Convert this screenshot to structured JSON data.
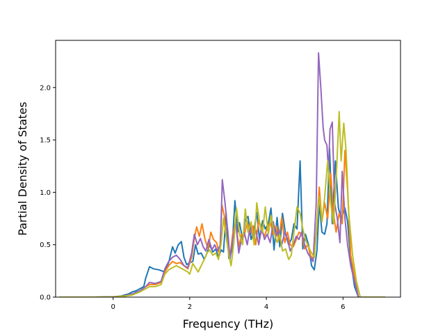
{
  "chart_data": {
    "type": "line",
    "xlabel": "Frequency (THz)",
    "ylabel": "Partial Density of States",
    "xlim": [
      -1.5,
      7.5
    ],
    "ylim": [
      0.0,
      2.45
    ],
    "grid": false,
    "legend": "none",
    "xticks": [
      {
        "v": 0,
        "label": "0"
      },
      {
        "v": 2,
        "label": "2"
      },
      {
        "v": 4,
        "label": "4"
      },
      {
        "v": 6,
        "label": "6"
      }
    ],
    "yticks": [
      {
        "v": 0.0,
        "label": "0.0"
      },
      {
        "v": 0.5,
        "label": "0.5"
      },
      {
        "v": 1.0,
        "label": "1.0"
      },
      {
        "v": 1.5,
        "label": "1.5"
      },
      {
        "v": 2.0,
        "label": "2.0"
      }
    ],
    "series": [
      {
        "color": "#1f77b4",
        "points": [
          [
            -1.4,
            0
          ],
          [
            -0.5,
            0
          ],
          [
            0,
            0.003
          ],
          [
            0.2,
            0.01
          ],
          [
            0.4,
            0.03
          ],
          [
            0.5,
            0.05
          ],
          [
            0.6,
            0.06
          ],
          [
            0.8,
            0.1
          ],
          [
            0.85,
            0.18
          ],
          [
            0.95,
            0.29
          ],
          [
            1.05,
            0.27
          ],
          [
            1.2,
            0.26
          ],
          [
            1.35,
            0.24
          ],
          [
            1.45,
            0.33
          ],
          [
            1.55,
            0.48
          ],
          [
            1.62,
            0.42
          ],
          [
            1.7,
            0.5
          ],
          [
            1.78,
            0.53
          ],
          [
            1.85,
            0.38
          ],
          [
            1.92,
            0.31
          ],
          [
            2.0,
            0.33
          ],
          [
            2.08,
            0.34
          ],
          [
            2.15,
            0.5
          ],
          [
            2.22,
            0.41
          ],
          [
            2.3,
            0.42
          ],
          [
            2.38,
            0.36
          ],
          [
            2.45,
            0.42
          ],
          [
            2.52,
            0.5
          ],
          [
            2.6,
            0.43
          ],
          [
            2.68,
            0.46
          ],
          [
            2.75,
            0.38
          ],
          [
            2.82,
            0.45
          ],
          [
            2.88,
            0.43
          ],
          [
            2.95,
            0.8
          ],
          [
            3.02,
            0.37
          ],
          [
            3.1,
            0.44
          ],
          [
            3.18,
            0.92
          ],
          [
            3.25,
            0.62
          ],
          [
            3.3,
            0.71
          ],
          [
            3.38,
            0.55
          ],
          [
            3.45,
            0.74
          ],
          [
            3.52,
            0.77
          ],
          [
            3.6,
            0.55
          ],
          [
            3.68,
            0.64
          ],
          [
            3.75,
            0.81
          ],
          [
            3.82,
            0.55
          ],
          [
            3.9,
            0.73
          ],
          [
            3.97,
            0.65
          ],
          [
            4.05,
            0.7
          ],
          [
            4.12,
            0.85
          ],
          [
            4.2,
            0.45
          ],
          [
            4.28,
            0.76
          ],
          [
            4.35,
            0.48
          ],
          [
            4.42,
            0.8
          ],
          [
            4.5,
            0.6
          ],
          [
            4.58,
            0.5
          ],
          [
            4.65,
            0.55
          ],
          [
            4.72,
            0.7
          ],
          [
            4.8,
            0.65
          ],
          [
            4.88,
            1.3
          ],
          [
            4.95,
            0.46
          ],
          [
            5.02,
            0.6
          ],
          [
            5.1,
            0.5
          ],
          [
            5.18,
            0.3
          ],
          [
            5.25,
            0.26
          ],
          [
            5.32,
            0.45
          ],
          [
            5.38,
            0.9
          ],
          [
            5.45,
            0.62
          ],
          [
            5.52,
            0.6
          ],
          [
            5.58,
            0.7
          ],
          [
            5.65,
            1.42
          ],
          [
            5.72,
            0.7
          ],
          [
            5.8,
            1.3
          ],
          [
            5.88,
            0.85
          ],
          [
            5.95,
            0.75
          ],
          [
            6.05,
            0.85
          ],
          [
            6.12,
            0.72
          ],
          [
            6.2,
            0.35
          ],
          [
            6.3,
            0.1
          ],
          [
            6.4,
            0.0
          ],
          [
            7.1,
            0
          ]
        ]
      },
      {
        "color": "#ff7f0e",
        "points": [
          [
            -1.4,
            0
          ],
          [
            -0.5,
            0
          ],
          [
            0,
            0.002
          ],
          [
            0.3,
            0.01
          ],
          [
            0.5,
            0.03
          ],
          [
            0.7,
            0.06
          ],
          [
            0.85,
            0.1
          ],
          [
            0.95,
            0.12
          ],
          [
            1.1,
            0.12
          ],
          [
            1.25,
            0.14
          ],
          [
            1.35,
            0.24
          ],
          [
            1.45,
            0.3
          ],
          [
            1.55,
            0.34
          ],
          [
            1.65,
            0.32
          ],
          [
            1.75,
            0.33
          ],
          [
            1.85,
            0.3
          ],
          [
            1.95,
            0.27
          ],
          [
            2.05,
            0.38
          ],
          [
            2.12,
            0.56
          ],
          [
            2.18,
            0.67
          ],
          [
            2.25,
            0.58
          ],
          [
            2.32,
            0.7
          ],
          [
            2.4,
            0.55
          ],
          [
            2.48,
            0.46
          ],
          [
            2.55,
            0.62
          ],
          [
            2.62,
            0.55
          ],
          [
            2.7,
            0.52
          ],
          [
            2.78,
            0.4
          ],
          [
            2.84,
            0.88
          ],
          [
            2.9,
            0.78
          ],
          [
            2.96,
            0.56
          ],
          [
            3.05,
            0.38
          ],
          [
            3.12,
            0.6
          ],
          [
            3.2,
            0.72
          ],
          [
            3.28,
            0.48
          ],
          [
            3.35,
            0.6
          ],
          [
            3.42,
            0.58
          ],
          [
            3.5,
            0.72
          ],
          [
            3.58,
            0.62
          ],
          [
            3.65,
            0.68
          ],
          [
            3.72,
            0.5
          ],
          [
            3.8,
            0.74
          ],
          [
            3.88,
            0.62
          ],
          [
            3.95,
            0.58
          ],
          [
            4.02,
            0.66
          ],
          [
            4.1,
            0.72
          ],
          [
            4.18,
            0.6
          ],
          [
            4.25,
            0.68
          ],
          [
            4.32,
            0.54
          ],
          [
            4.4,
            0.76
          ],
          [
            4.48,
            0.52
          ],
          [
            4.55,
            0.62
          ],
          [
            4.62,
            0.5
          ],
          [
            4.7,
            0.48
          ],
          [
            4.78,
            0.55
          ],
          [
            4.85,
            0.62
          ],
          [
            4.92,
            0.6
          ],
          [
            5.0,
            0.46
          ],
          [
            5.08,
            0.5
          ],
          [
            5.15,
            0.4
          ],
          [
            5.22,
            0.36
          ],
          [
            5.3,
            0.6
          ],
          [
            5.38,
            1.05
          ],
          [
            5.45,
            0.72
          ],
          [
            5.52,
            0.9
          ],
          [
            5.6,
            0.75
          ],
          [
            5.68,
            1.18
          ],
          [
            5.75,
            0.8
          ],
          [
            5.82,
            0.62
          ],
          [
            5.9,
            0.8
          ],
          [
            5.98,
            0.7
          ],
          [
            6.05,
            1.4
          ],
          [
            6.12,
            1.02
          ],
          [
            6.2,
            0.4
          ],
          [
            6.3,
            0.2
          ],
          [
            6.4,
            0.0
          ],
          [
            7.1,
            0
          ]
        ]
      },
      {
        "color": "#9467bd",
        "points": [
          [
            -1.4,
            0
          ],
          [
            -0.5,
            0
          ],
          [
            0,
            0.002
          ],
          [
            0.3,
            0.01
          ],
          [
            0.5,
            0.03
          ],
          [
            0.7,
            0.06
          ],
          [
            0.85,
            0.1
          ],
          [
            0.95,
            0.14
          ],
          [
            1.1,
            0.13
          ],
          [
            1.25,
            0.15
          ],
          [
            1.35,
            0.27
          ],
          [
            1.45,
            0.34
          ],
          [
            1.55,
            0.38
          ],
          [
            1.65,
            0.4
          ],
          [
            1.75,
            0.36
          ],
          [
            1.85,
            0.3
          ],
          [
            1.95,
            0.28
          ],
          [
            2.05,
            0.42
          ],
          [
            2.12,
            0.6
          ],
          [
            2.2,
            0.5
          ],
          [
            2.28,
            0.56
          ],
          [
            2.35,
            0.48
          ],
          [
            2.42,
            0.44
          ],
          [
            2.5,
            0.55
          ],
          [
            2.58,
            0.45
          ],
          [
            2.65,
            0.5
          ],
          [
            2.72,
            0.44
          ],
          [
            2.8,
            0.5
          ],
          [
            2.85,
            1.12
          ],
          [
            2.92,
            0.9
          ],
          [
            3.0,
            0.6
          ],
          [
            3.05,
            0.36
          ],
          [
            3.12,
            0.55
          ],
          [
            3.2,
            0.72
          ],
          [
            3.28,
            0.42
          ],
          [
            3.35,
            0.55
          ],
          [
            3.42,
            0.62
          ],
          [
            3.5,
            0.5
          ],
          [
            3.58,
            0.68
          ],
          [
            3.65,
            0.56
          ],
          [
            3.72,
            0.64
          ],
          [
            3.8,
            0.5
          ],
          [
            3.88,
            0.66
          ],
          [
            3.95,
            0.55
          ],
          [
            4.02,
            0.6
          ],
          [
            4.1,
            0.52
          ],
          [
            4.18,
            0.72
          ],
          [
            4.25,
            0.58
          ],
          [
            4.32,
            0.64
          ],
          [
            4.4,
            0.5
          ],
          [
            4.48,
            0.62
          ],
          [
            4.55,
            0.56
          ],
          [
            4.62,
            0.44
          ],
          [
            4.7,
            0.5
          ],
          [
            4.78,
            0.58
          ],
          [
            4.85,
            0.55
          ],
          [
            4.92,
            0.62
          ],
          [
            5.0,
            0.5
          ],
          [
            5.08,
            0.42
          ],
          [
            5.15,
            0.38
          ],
          [
            5.22,
            0.34
          ],
          [
            5.3,
            0.9
          ],
          [
            5.36,
            2.33
          ],
          [
            5.42,
            2.0
          ],
          [
            5.48,
            1.62
          ],
          [
            5.52,
            1.5
          ],
          [
            5.58,
            1.45
          ],
          [
            5.62,
            1.2
          ],
          [
            5.66,
            1.6
          ],
          [
            5.72,
            1.67
          ],
          [
            5.78,
            0.9
          ],
          [
            5.85,
            0.75
          ],
          [
            5.92,
            0.52
          ],
          [
            5.98,
            1.2
          ],
          [
            6.05,
            0.75
          ],
          [
            6.12,
            0.5
          ],
          [
            6.2,
            0.3
          ],
          [
            6.3,
            0.15
          ],
          [
            6.4,
            0.0
          ],
          [
            7.1,
            0
          ]
        ]
      },
      {
        "color": "#bcbd22",
        "points": [
          [
            -1.4,
            0
          ],
          [
            -0.5,
            0
          ],
          [
            0,
            0.002
          ],
          [
            0.3,
            0.01
          ],
          [
            0.5,
            0.02
          ],
          [
            0.7,
            0.05
          ],
          [
            0.85,
            0.08
          ],
          [
            0.95,
            0.1
          ],
          [
            1.1,
            0.1
          ],
          [
            1.25,
            0.12
          ],
          [
            1.35,
            0.22
          ],
          [
            1.45,
            0.26
          ],
          [
            1.55,
            0.28
          ],
          [
            1.65,
            0.3
          ],
          [
            1.75,
            0.28
          ],
          [
            1.85,
            0.26
          ],
          [
            1.95,
            0.24
          ],
          [
            2.0,
            0.22
          ],
          [
            2.08,
            0.32
          ],
          [
            2.15,
            0.28
          ],
          [
            2.22,
            0.24
          ],
          [
            2.3,
            0.3
          ],
          [
            2.38,
            0.36
          ],
          [
            2.45,
            0.42
          ],
          [
            2.52,
            0.45
          ],
          [
            2.6,
            0.4
          ],
          [
            2.68,
            0.42
          ],
          [
            2.75,
            0.36
          ],
          [
            2.82,
            0.52
          ],
          [
            2.88,
            0.75
          ],
          [
            2.95,
            0.58
          ],
          [
            3.02,
            0.4
          ],
          [
            3.08,
            0.3
          ],
          [
            3.15,
            0.52
          ],
          [
            3.22,
            0.85
          ],
          [
            3.3,
            0.6
          ],
          [
            3.38,
            0.5
          ],
          [
            3.45,
            0.84
          ],
          [
            3.52,
            0.62
          ],
          [
            3.6,
            0.72
          ],
          [
            3.68,
            0.5
          ],
          [
            3.75,
            0.9
          ],
          [
            3.82,
            0.72
          ],
          [
            3.9,
            0.62
          ],
          [
            3.97,
            0.86
          ],
          [
            4.05,
            0.6
          ],
          [
            4.12,
            0.78
          ],
          [
            4.2,
            0.62
          ],
          [
            4.28,
            0.52
          ],
          [
            4.35,
            0.6
          ],
          [
            4.42,
            0.44
          ],
          [
            4.5,
            0.46
          ],
          [
            4.58,
            0.36
          ],
          [
            4.65,
            0.4
          ],
          [
            4.72,
            0.62
          ],
          [
            4.8,
            0.86
          ],
          [
            4.88,
            0.8
          ],
          [
            4.95,
            0.65
          ],
          [
            5.02,
            0.55
          ],
          [
            5.1,
            0.48
          ],
          [
            5.18,
            0.42
          ],
          [
            5.25,
            0.38
          ],
          [
            5.32,
            0.7
          ],
          [
            5.38,
            0.96
          ],
          [
            5.45,
            0.72
          ],
          [
            5.52,
            0.95
          ],
          [
            5.6,
            1.3
          ],
          [
            5.68,
            0.9
          ],
          [
            5.75,
            0.7
          ],
          [
            5.82,
            1.12
          ],
          [
            5.9,
            1.77
          ],
          [
            5.95,
            1.3
          ],
          [
            6.02,
            1.66
          ],
          [
            6.08,
            1.4
          ],
          [
            6.15,
            0.8
          ],
          [
            6.25,
            0.4
          ],
          [
            6.35,
            0.15
          ],
          [
            6.45,
            0.0
          ],
          [
            7.1,
            0
          ]
        ]
      }
    ]
  }
}
